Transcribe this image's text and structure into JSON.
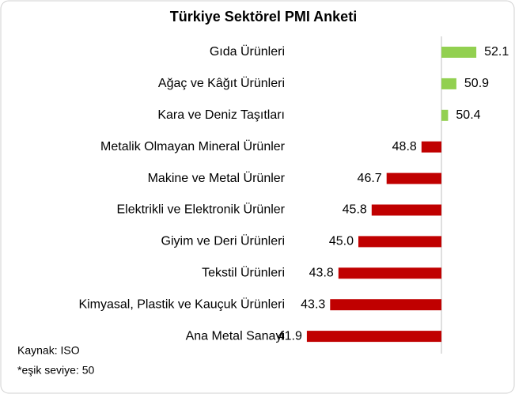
{
  "chart_data": {
    "type": "bar",
    "orientation": "horizontal",
    "title": "Türkiye Sektörel PMI Anketi",
    "categories": [
      "Gıda Ürünleri",
      "Ağaç ve Kâğıt Ürünleri",
      "Kara ve Deniz Taşıtları",
      "Metalik Olmayan Mineral Ürünler",
      "Makine ve Metal Ürünler",
      "Elektrikli ve Elektronik Ürünler",
      "Giyim ve Deri Ürünleri",
      "Tekstil Ürünleri",
      "Kimyasal, Plastik ve Kauçuk Ürünleri",
      "Ana Metal Sanayi"
    ],
    "values": [
      52.1,
      50.9,
      50.4,
      48.8,
      46.7,
      45.8,
      45.0,
      43.8,
      43.3,
      41.9
    ],
    "value_labels": [
      "52.1",
      "50.9",
      "50.4",
      "48.8",
      "46.7",
      "45.8",
      "45.0",
      "43.8",
      "43.3",
      "41.9"
    ],
    "baseline": 50,
    "xlim": [
      40,
      54
    ],
    "positive_color": "#92d050",
    "negative_color": "#c00000",
    "notes": [
      "Kaynak: ISO",
      "*eşik seviye: 50"
    ]
  }
}
